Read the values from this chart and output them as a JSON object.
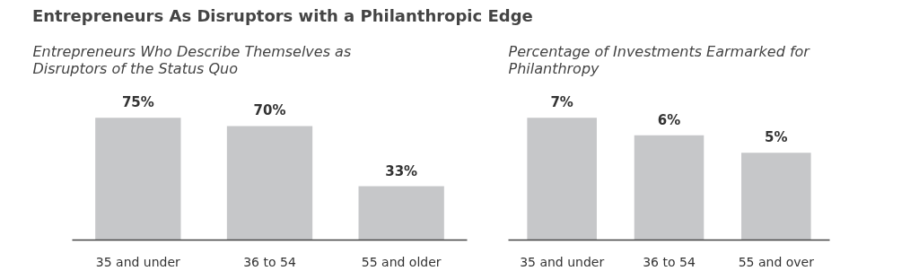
{
  "chart_data": [
    {
      "type": "bar",
      "title": "Entrepreneurs As Disruptors with a Philanthropic Edge",
      "subtitle": "Entrepreneurs Who Describe Themselves as\nDisruptors of the Status Quo",
      "categories": [
        "35 and under",
        "36 to 54",
        "55 and older"
      ],
      "values": [
        75,
        70,
        33
      ],
      "color": "#c6c7c9",
      "data_labels": true,
      "value_labels": [
        "75%",
        "70%",
        "33%"
      ],
      "grid": false
    },
    {
      "type": "bar",
      "subtitle": "Percentage of Investments Earmarked for\nPhilanthropy",
      "categories": [
        "35 and under",
        "36 to 54",
        "55 and over"
      ],
      "values": [
        7,
        6,
        5
      ],
      "color": "#c6c7c9",
      "data_labels": true,
      "value_labels": [
        "7%",
        "6%",
        "5%"
      ],
      "grid": false
    }
  ]
}
